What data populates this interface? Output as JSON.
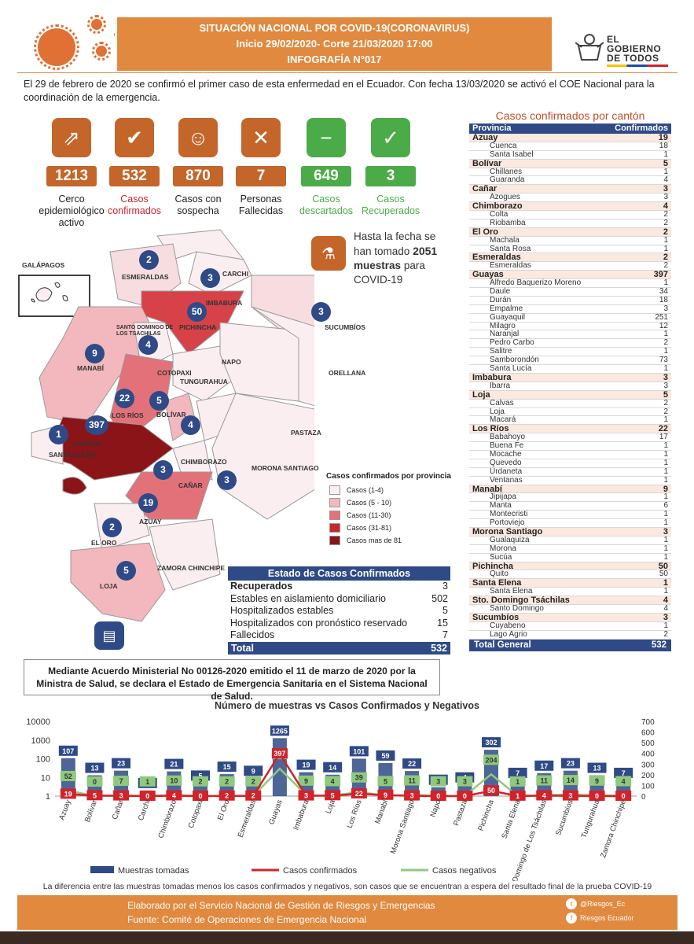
{
  "header": {
    "line1": "SITUACIÓN NACIONAL POR  COVID-19(CORONAVIRUS)",
    "line2": "Inicio 29/02/2020- Corte 21/03/2020 17:00",
    "line3": "INFOGRAFÍA N°017",
    "logo_text1": "EL",
    "logo_text2": "GOBIERNO",
    "logo_text3": "DE TODOS"
  },
  "intro": "El 29 de febrero de 2020 se confirmó el primer caso de esta enfermedad en el Ecuador. Con fecha 13/03/2020 se activó el COE Nacional para la coordinación de la emergencia.",
  "stats": [
    {
      "value": "1213",
      "label": "Cerco epidemiológico activo",
      "icon": "people-trend-icon",
      "color": "#c4652a",
      "label_color": "#222"
    },
    {
      "value": "532",
      "label": "Casos confirmados",
      "icon": "checkmark-icon",
      "color": "#c4652a",
      "label_color": "#c8272c"
    },
    {
      "value": "870",
      "label": "Casos con sospecha",
      "icon": "doctor-icon",
      "color": "#c4652a",
      "label_color": "#222"
    },
    {
      "value": "7",
      "label": "Personas Fallecidas",
      "icon": "person-cross-icon",
      "color": "#c4652a",
      "label_color": "#222"
    },
    {
      "value": "649",
      "label": "Casos descartados",
      "icon": "minus-icon",
      "color": "#4bab48",
      "label_color": "#4bab48"
    },
    {
      "value": "3",
      "label": "Casos Recuperados",
      "icon": "recovered-icon",
      "color": "#4bab48",
      "label_color": "#4bab48"
    }
  ],
  "samples_note": {
    "pre": "Hasta la fecha se han tomado",
    "value": "2051",
    "bold2": "muestras",
    "post": "para COVID-19"
  },
  "map": {
    "galapagos": "GALÁPAGOS",
    "labels": [
      {
        "name": "ESMERALDAS"
      },
      {
        "name": "CARCHI"
      },
      {
        "name": "IMBABURA"
      },
      {
        "name": "PICHINCHA"
      },
      {
        "name": "SUCUMBÍOS"
      },
      {
        "name": "SANTO DOMINGO DE LOS TSÁCHILAS"
      },
      {
        "name": "MANABÍ"
      },
      {
        "name": "COTOPAXI"
      },
      {
        "name": "NAPO"
      },
      {
        "name": "ORELLANA"
      },
      {
        "name": "TUNGURAHUA"
      },
      {
        "name": "LOS RÍOS"
      },
      {
        "name": "BOLÍVAR"
      },
      {
        "name": "PASTAZA"
      },
      {
        "name": "SANTA ELENA"
      },
      {
        "name": "GUAYAS"
      },
      {
        "name": "CHIMBORAZO"
      },
      {
        "name": "MORONA SANTIAGO"
      },
      {
        "name": "CAÑAR"
      },
      {
        "name": "AZUAY"
      },
      {
        "name": "EL ORO"
      },
      {
        "name": "ZAMORA CHINCHIPE"
      },
      {
        "name": "LOJA"
      }
    ],
    "badges": [
      "2",
      "3",
      "50",
      "3",
      "4",
      "9",
      "22",
      "5",
      "397",
      "4",
      "1",
      "3",
      "3",
      "19",
      "2",
      "5"
    ]
  },
  "legend": {
    "title": "Casos confirmados por provincia",
    "items": [
      {
        "label": "Casos (1-4)",
        "color": "#fbeef0"
      },
      {
        "label": "Casos (5 - 10)",
        "color": "#f3b8bd"
      },
      {
        "label": "Casos (11-30)",
        "color": "#e3717a"
      },
      {
        "label": "Casos (31-81)",
        "color": "#c8272c"
      },
      {
        "label": "Casos mas de 81",
        "color": "#8b1418"
      }
    ]
  },
  "status": {
    "title": "Estado de Casos Confirmados",
    "rows": [
      {
        "label": "Recuperados",
        "value": "3"
      },
      {
        "label": "Estables en aislamiento domiciliario",
        "value": "502"
      },
      {
        "label": "Hospitalizados estables",
        "value": "5"
      },
      {
        "label": "Hospitalizados con pronóstico reservado",
        "value": "15"
      },
      {
        "label": "Fallecidos",
        "value": "7"
      }
    ],
    "total_label": "Total",
    "total_value": "532"
  },
  "declaration": "Mediante Acuerdo Ministerial No 00126-2020 emitido el 11 de marzo de 2020 por la Ministra de Salud, se declara el Estado de Emergencia Sanitaria en el Sistema Nacional de Salud.",
  "canton_table": {
    "title": "Casos confirmados por cantón",
    "col1": "Provincia",
    "col2": "Confirmados",
    "groups": [
      {
        "name": "Azuay",
        "total": "19",
        "items": [
          [
            "Cuenca",
            "18"
          ],
          [
            "Santa Isabel",
            "1"
          ]
        ]
      },
      {
        "name": "Bolívar",
        "total": "5",
        "items": [
          [
            "Chillanes",
            "1"
          ],
          [
            "Guaranda",
            "4"
          ]
        ]
      },
      {
        "name": "Cañar",
        "total": "3",
        "items": [
          [
            "Azogues",
            "3"
          ]
        ]
      },
      {
        "name": "Chimborazo",
        "total": "4",
        "items": [
          [
            "Colta",
            "2"
          ],
          [
            "Riobamba",
            "2"
          ]
        ]
      },
      {
        "name": "El Oro",
        "total": "2",
        "items": [
          [
            "Machala",
            "1"
          ],
          [
            "Santa Rosa",
            "1"
          ]
        ]
      },
      {
        "name": "Esmeraldas",
        "total": "2",
        "items": [
          [
            "Esmeraldas",
            "2"
          ]
        ]
      },
      {
        "name": "Guayas",
        "total": "397",
        "items": [
          [
            "Alfredo Baquerizo Moreno",
            "1"
          ],
          [
            "Daule",
            "34"
          ],
          [
            "Durán",
            "18"
          ],
          [
            "Empalme",
            "3"
          ],
          [
            "Guayaquil",
            "251"
          ],
          [
            "Milagro",
            "12"
          ],
          [
            "Naranjal",
            "1"
          ],
          [
            "Pedro Carbo",
            "2"
          ],
          [
            "Salitre",
            "1"
          ],
          [
            "Samborondón",
            "73"
          ],
          [
            "Santa Lucía",
            "1"
          ]
        ]
      },
      {
        "name": "Imbabura",
        "total": "3",
        "items": [
          [
            "Ibarra",
            "3"
          ]
        ]
      },
      {
        "name": "Loja",
        "total": "5",
        "items": [
          [
            "Calvas",
            "2"
          ],
          [
            "Loja",
            "2"
          ],
          [
            "Macará",
            "1"
          ]
        ]
      },
      {
        "name": "Los Ríos",
        "total": "22",
        "items": [
          [
            "Babahoyo",
            "17"
          ],
          [
            "Buena Fe",
            "1"
          ],
          [
            "Mocache",
            "1"
          ],
          [
            "Quevedo",
            "1"
          ],
          [
            "Urdaneta",
            "1"
          ],
          [
            "Ventanas",
            "1"
          ]
        ]
      },
      {
        "name": "Manabí",
        "total": "9",
        "items": [
          [
            "Jipijapa",
            "1"
          ],
          [
            "Manta",
            "6"
          ],
          [
            "Montecristi",
            "1"
          ],
          [
            "Portoviejo",
            "1"
          ]
        ]
      },
      {
        "name": "Morona Santiago",
        "total": "3",
        "items": [
          [
            "Gualaquiza",
            "1"
          ],
          [
            "Morona",
            "1"
          ],
          [
            "Sucúa",
            "1"
          ]
        ]
      },
      {
        "name": "Pichincha",
        "total": "50",
        "items": [
          [
            "Quito",
            "50"
          ]
        ]
      },
      {
        "name": "Santa Elena",
        "total": "1",
        "items": [
          [
            "Santa Elena",
            "1"
          ]
        ]
      },
      {
        "name": "Sto. Domingo Tsáchilas",
        "total": "4",
        "items": [
          [
            "Santo Domingo",
            "4"
          ]
        ]
      },
      {
        "name": "Sucumbíos",
        "total": "3",
        "items": [
          [
            "Cuyabeno",
            "1"
          ],
          [
            "Lago Agrio",
            "2"
          ]
        ]
      }
    ],
    "total_label": "Total General",
    "total_value": "532"
  },
  "chart_data": {
    "type": "bar",
    "title": "Número de muestras vs Casos Confirmados y Negativos",
    "categories": [
      "Azuay",
      "Bolívar",
      "Cañar",
      "Carchi",
      "Chimborazo",
      "Cotopaxi",
      "El Oro",
      "Esmeraldas",
      "Guayas",
      "Imbabura",
      "Loja",
      "Los Ríos",
      "Manabí",
      "Morona Santiago",
      "Napo",
      "Pastaza",
      "Pichincha",
      "Santa Elena",
      "Santo Domingo de Los Tsáchilas",
      "Sucumbíos",
      "Tungurahua",
      "Zamora Chinchipe"
    ],
    "series": [
      {
        "name": "Muestras tomadas",
        "type": "bar",
        "axis": "left-log",
        "values": [
          107,
          13,
          23,
          2,
          21,
          5,
          15,
          9,
          1265,
          19,
          14,
          101,
          59,
          22,
          3,
          4,
          302,
          7,
          17,
          23,
          13,
          7
        ]
      },
      {
        "name": "Casos confirmados",
        "type": "line",
        "axis": "right",
        "values": [
          19,
          5,
          3,
          0,
          4,
          0,
          2,
          2,
          397,
          3,
          5,
          22,
          9,
          3,
          0,
          0,
          50,
          1,
          4,
          3,
          0,
          0
        ]
      },
      {
        "name": "Casos negativos",
        "type": "line",
        "axis": "right",
        "values": [
          52,
          0,
          7,
          1,
          10,
          2,
          2,
          2,
          257,
          9,
          4,
          39,
          5,
          11,
          3,
          3,
          204,
          1,
          11,
          14,
          9,
          4
        ]
      }
    ],
    "yleft_ticks": [
      "10000",
      "1000",
      "100",
      "10",
      "1"
    ],
    "yright_ticks": [
      "700",
      "600",
      "500",
      "400",
      "300",
      "200",
      "100",
      "0"
    ],
    "colors": {
      "bar": "#2f4a86",
      "confirmed": "#d2232a",
      "negative": "#8fc97e"
    }
  },
  "chart_note": "La diferencia entre las muestras tomadas menos los casos confirmados y negativos, son casos que se encuentran a espera del resultado final de la prueba COVID-19",
  "footer": {
    "line1": "Elaborado por el Servicio Nacional de Gestión de Riesgos y Emergencias",
    "line2": "Fuente: Comité de Operaciones de Emergencia Nacional",
    "twitter": "@Riesgos_Ec",
    "facebook": "Riesgos Ecuador"
  }
}
